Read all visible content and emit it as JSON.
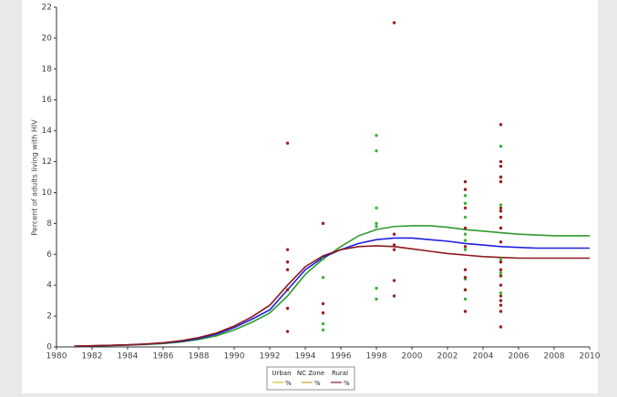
{
  "chart_data": {
    "type": "line",
    "y_label": "Percent of adults living with HIV",
    "xlim": [
      1980,
      2010
    ],
    "xticks": [
      1980,
      1982,
      1984,
      1986,
      1988,
      1990,
      1992,
      1994,
      1996,
      1998,
      2000,
      2002,
      2004,
      2006,
      2008,
      2010
    ],
    "ylim": [
      0,
      22
    ],
    "yticks": [
      0,
      2,
      4,
      6,
      8,
      10,
      12,
      14,
      16,
      18,
      20,
      22
    ],
    "series": [
      {
        "type": "line",
        "color": "#2e9a2e",
        "x": [
          1981,
          1982,
          1983,
          1984,
          1985,
          1986,
          1987,
          1988,
          1989,
          1990,
          1991,
          1992,
          1993,
          1994,
          1995,
          1996,
          1997,
          1998,
          1999,
          2000,
          2001,
          2002,
          2003,
          2004,
          2005,
          2006,
          2007,
          2008,
          2009,
          2010
        ],
        "values": [
          0.05,
          0.07,
          0.09,
          0.12,
          0.16,
          0.22,
          0.32,
          0.48,
          0.72,
          1.1,
          1.6,
          2.2,
          3.3,
          4.7,
          5.7,
          6.5,
          7.2,
          7.6,
          7.8,
          7.85,
          7.85,
          7.75,
          7.6,
          7.5,
          7.4,
          7.3,
          7.25,
          7.2,
          7.2,
          7.2
        ]
      },
      {
        "type": "line",
        "color": "#1f1fe0",
        "x": [
          1981,
          1982,
          1983,
          1984,
          1985,
          1986,
          1987,
          1988,
          1989,
          1990,
          1991,
          1992,
          1993,
          1994,
          1995,
          1996,
          1997,
          1998,
          1999,
          2000,
          2001,
          2002,
          2003,
          2004,
          2005,
          2006,
          2007,
          2008,
          2009,
          2010
        ],
        "values": [
          0.05,
          0.07,
          0.1,
          0.13,
          0.18,
          0.25,
          0.36,
          0.55,
          0.82,
          1.25,
          1.8,
          2.4,
          3.7,
          5.0,
          5.8,
          6.3,
          6.7,
          6.95,
          7.05,
          7.05,
          6.95,
          6.85,
          6.7,
          6.6,
          6.5,
          6.45,
          6.4,
          6.4,
          6.4,
          6.4
        ]
      },
      {
        "type": "line",
        "color": "#8b1a1a",
        "x": [
          1981,
          1982,
          1983,
          1984,
          1985,
          1986,
          1987,
          1988,
          1989,
          1990,
          1991,
          1992,
          1993,
          1994,
          1995,
          1996,
          1997,
          1998,
          1999,
          2000,
          2001,
          2002,
          2003,
          2004,
          2005,
          2006,
          2007,
          2008,
          2009,
          2010
        ],
        "values": [
          0.05,
          0.08,
          0.1,
          0.14,
          0.19,
          0.27,
          0.4,
          0.6,
          0.9,
          1.35,
          1.95,
          2.7,
          4.0,
          5.2,
          5.9,
          6.3,
          6.5,
          6.55,
          6.5,
          6.35,
          6.2,
          6.05,
          5.95,
          5.85,
          5.8,
          5.75,
          5.75,
          5.75,
          5.75,
          5.75
        ]
      },
      {
        "type": "scatter",
        "color": "#3cb43c",
        "x": [
          1995,
          1995,
          1995,
          1995,
          1998,
          1998,
          1998,
          1998,
          1998,
          1998,
          1998,
          2003,
          2003,
          2003,
          2003,
          2003,
          2003,
          2003,
          2003,
          2003,
          2005,
          2005,
          2005,
          2005,
          2005,
          2005,
          2005
        ],
        "values": [
          5.7,
          4.5,
          1.5,
          1.1,
          13.7,
          12.7,
          9.0,
          8.0,
          7.8,
          3.8,
          3.1,
          9.8,
          9.3,
          8.4,
          7.3,
          6.9,
          6.3,
          4.4,
          3.7,
          3.1,
          13.0,
          11.0,
          9.2,
          8.8,
          5.7,
          4.8,
          3.5
        ]
      },
      {
        "type": "scatter",
        "color": "#9b2020",
        "x": [
          1993,
          1993,
          1993,
          1993,
          1993,
          1993,
          1993,
          1995,
          1995,
          1995,
          1999,
          1999,
          1999,
          1999,
          1999,
          1999,
          2003,
          2003,
          2003,
          2003,
          2003,
          2003,
          2003,
          2003,
          2003,
          2005,
          2005,
          2005,
          2005,
          2005,
          2005,
          2005,
          2005,
          2005,
          2005,
          2005,
          2005,
          2005,
          2005,
          2005,
          2005,
          2005,
          2005,
          2005
        ],
        "values": [
          13.2,
          6.3,
          5.5,
          5.0,
          3.7,
          2.5,
          1.0,
          8.0,
          2.8,
          2.2,
          21.0,
          7.3,
          6.6,
          6.3,
          4.3,
          3.3,
          10.7,
          10.2,
          9.0,
          7.7,
          6.5,
          5.0,
          4.5,
          3.7,
          2.3,
          14.4,
          12.0,
          11.7,
          11.0,
          10.7,
          9.0,
          8.8,
          8.4,
          7.7,
          6.8,
          5.5,
          5.0,
          4.6,
          4.0,
          3.3,
          3.0,
          2.7,
          2.3,
          1.3
        ]
      }
    ],
    "legend": {
      "entries": [
        {
          "name": "Urban",
          "label": "%",
          "color": "#e0c020"
        },
        {
          "name": "NC Zone",
          "label": "%",
          "color": "#d0a030"
        },
        {
          "name": "Rural",
          "label": "%",
          "color": "#8b1a1a"
        }
      ]
    }
  }
}
